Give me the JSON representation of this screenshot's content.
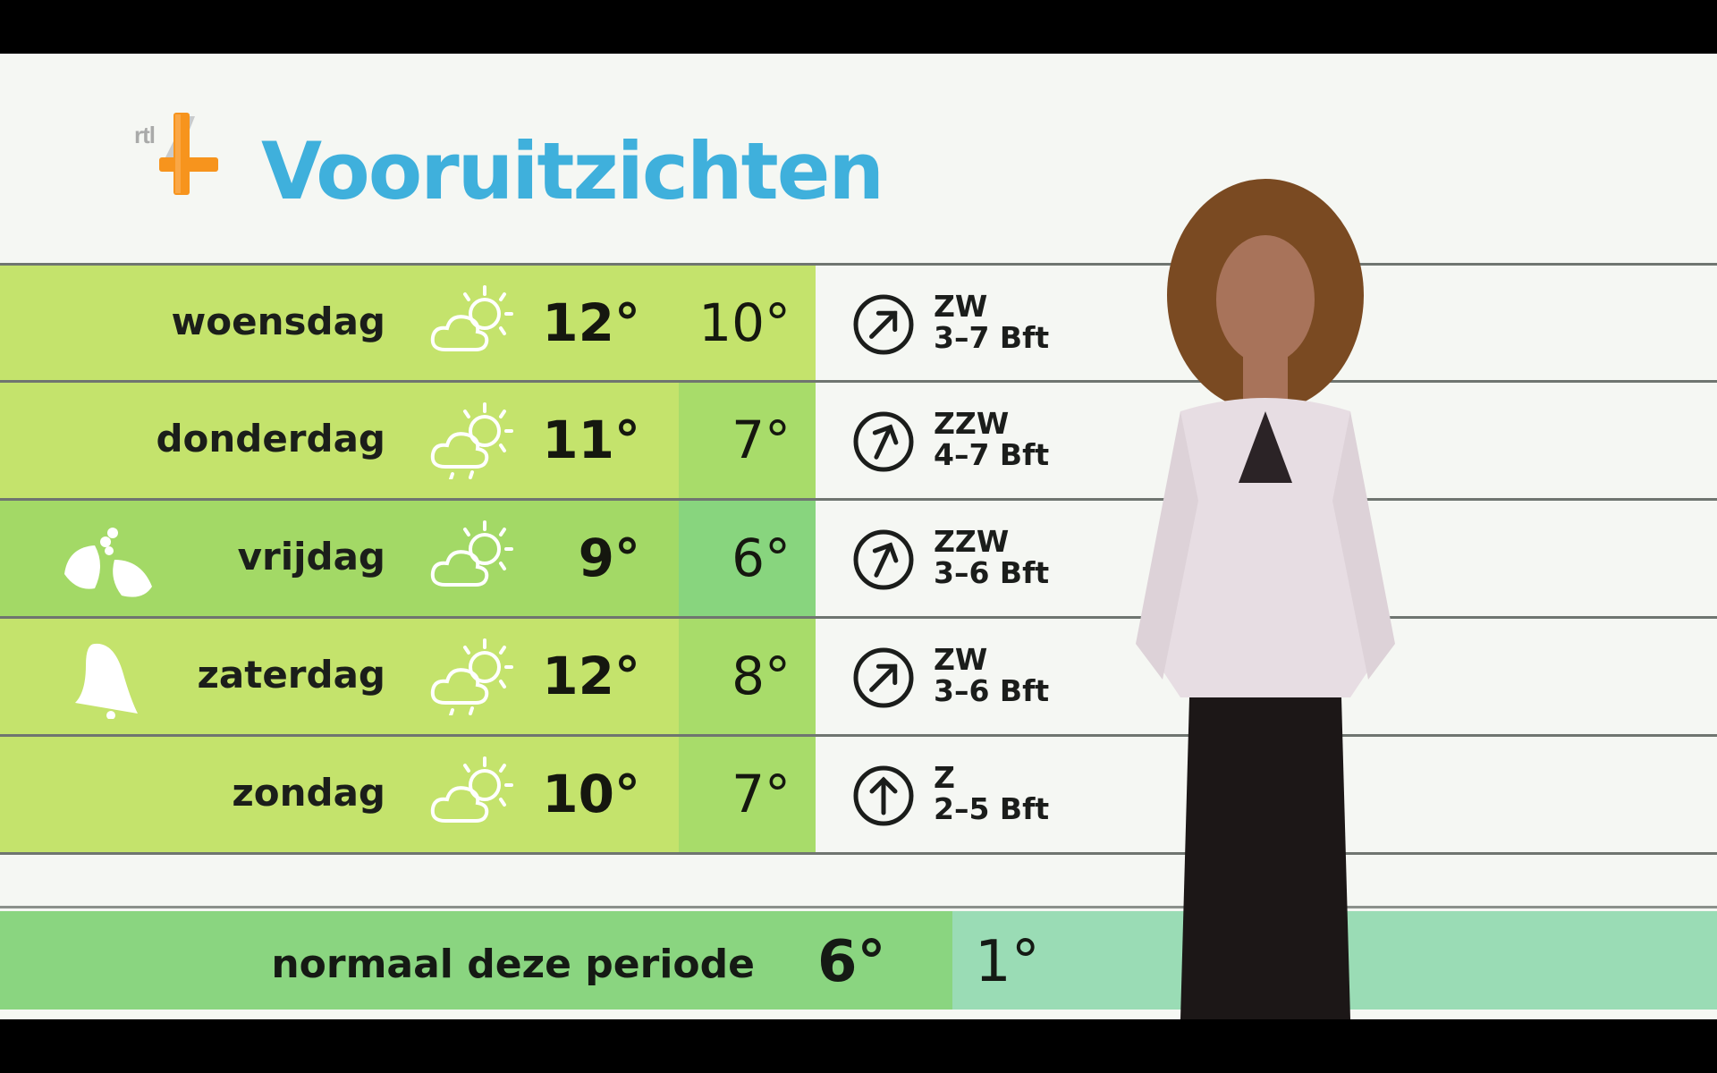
{
  "channel": {
    "logo_text": "rtl 4",
    "logo_color": "#f7941d"
  },
  "title": "Vooruitzichten",
  "colors": {
    "title": "#3fb0dc",
    "row_lime": "#c4e36c",
    "row_green": "#a3d966",
    "low_lime": "#a8dc6a",
    "low_green": "#88d57e",
    "normal_green": "#8ad580",
    "normal_mint": "#9adcb5"
  },
  "forecast": [
    {
      "day": "woensdag",
      "icon": "partly-cloudy-icon",
      "high": "12°",
      "low": "10°",
      "wind_dir": "ZW",
      "wind_speed": "3–7 Bft",
      "holiday_icon": null,
      "row": "lime",
      "low_shade": "lime"
    },
    {
      "day": "donderdag",
      "icon": "cloud-sun-drizzle-icon",
      "high": "11°",
      "low": "7°",
      "wind_dir": "ZZW",
      "wind_speed": "4–7 Bft",
      "holiday_icon": null,
      "row": "lime",
      "low_shade": "green"
    },
    {
      "day": "vrijdag",
      "icon": "partly-cloudy-icon",
      "high": "9°",
      "low": "6°",
      "wind_dir": "ZZW",
      "wind_speed": "3–6 Bft",
      "holiday_icon": "holly-icon",
      "row": "green",
      "low_shade": "greener"
    },
    {
      "day": "zaterdag",
      "icon": "cloud-sun-drizzle-icon",
      "high": "12°",
      "low": "8°",
      "wind_dir": "ZW",
      "wind_speed": "3–6 Bft",
      "holiday_icon": "bell-icon",
      "row": "lime",
      "low_shade": "green"
    },
    {
      "day": "zondag",
      "icon": "partly-cloudy-icon",
      "high": "10°",
      "low": "7°",
      "wind_dir": "Z",
      "wind_speed": "2–5 Bft",
      "holiday_icon": null,
      "row": "lime",
      "low_shade": "green"
    }
  ],
  "normal": {
    "label": "normaal deze periode",
    "high": "6°",
    "low": "1°"
  }
}
